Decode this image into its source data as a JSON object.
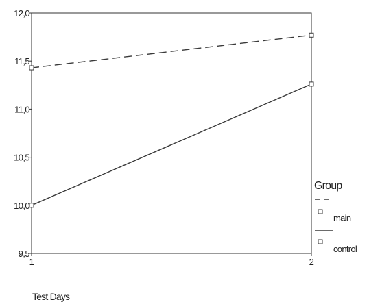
{
  "chart_data": {
    "type": "line",
    "x": [
      1,
      2
    ],
    "x_ticks": [
      "1",
      "2"
    ],
    "y_ticks": [
      "9,5",
      "10,0",
      "10,5",
      "11,0",
      "11,5",
      "12,0"
    ],
    "ylim": [
      9.5,
      12.0
    ],
    "xlim": [
      1,
      2
    ],
    "xlabel": "Test Days",
    "ylabel": "",
    "title": "",
    "legend_title": "Group",
    "legend_position": "right",
    "grid": false,
    "series": [
      {
        "name": "main",
        "values": [
          11.43,
          11.77
        ],
        "line_style": "dashed",
        "marker": "square",
        "color": "#3a3a3a"
      },
      {
        "name": "control",
        "values": [
          10.0,
          11.26
        ],
        "line_style": "solid",
        "marker": "square",
        "color": "#3a3a3a"
      }
    ]
  }
}
